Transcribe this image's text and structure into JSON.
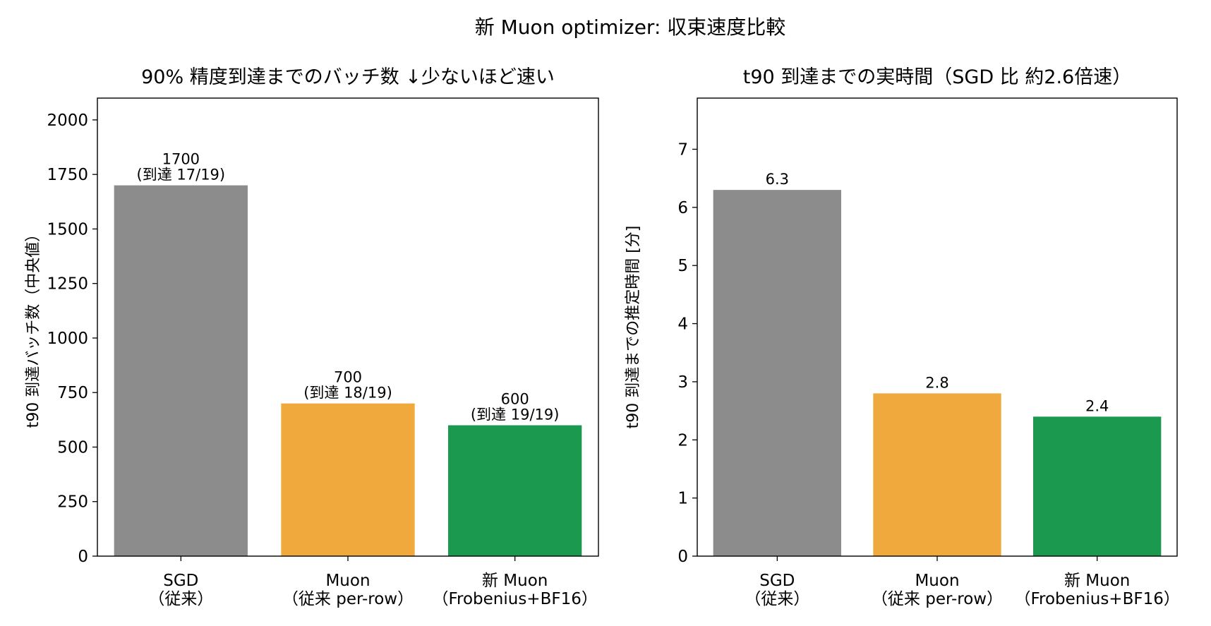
{
  "suptitle": "新 Muon optimizer: 収束速度比較",
  "chart_data": [
    {
      "type": "bar",
      "title": "90% 精度到達までのバッチ数 ↓少ないほど速い",
      "xlabel": "",
      "ylabel": "t90 到達バッチ数（中央値）",
      "categories": [
        [
          "SGD",
          "（従来）"
        ],
        [
          "Muon",
          "（従来 per-row）"
        ],
        [
          "新 Muon",
          "（Frobenius+BF16）"
        ]
      ],
      "values": [
        1700,
        700,
        600
      ],
      "value_labels": [
        [
          "1700",
          "(到達 17/19)"
        ],
        [
          "700",
          "(到達 18/19)"
        ],
        [
          "600",
          "(到達 19/19)"
        ]
      ],
      "colors": [
        "#8c8c8c",
        "#f0a93d",
        "#1b9a4f"
      ],
      "ylim": [
        0,
        2100
      ],
      "yticks": [
        0,
        250,
        500,
        750,
        1000,
        1250,
        1500,
        1750,
        2000
      ],
      "grid": false,
      "legend": "none"
    },
    {
      "type": "bar",
      "title": "t90 到達までの実時間（SGD 比 約2.6倍速）",
      "xlabel": "",
      "ylabel": "t90 到達までの推定時間 [分]",
      "categories": [
        [
          "SGD",
          "（従来）"
        ],
        [
          "Muon",
          "（従来 per-row）"
        ],
        [
          "新 Muon",
          "（Frobenius+BF16）"
        ]
      ],
      "values": [
        6.3,
        2.8,
        2.4
      ],
      "value_labels": [
        [
          "6.3"
        ],
        [
          "2.8"
        ],
        [
          "2.4"
        ]
      ],
      "colors": [
        "#8c8c8c",
        "#f0a93d",
        "#1b9a4f"
      ],
      "ylim": [
        0,
        7.88
      ],
      "yticks": [
        0,
        1,
        2,
        3,
        4,
        5,
        6,
        7
      ],
      "grid": false,
      "legend": "none"
    }
  ]
}
